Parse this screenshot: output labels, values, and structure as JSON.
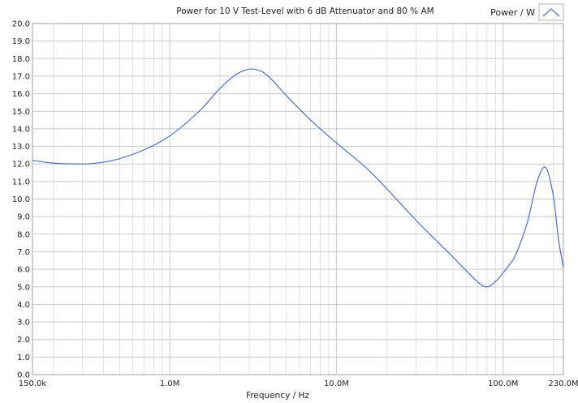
{
  "chart_data": {
    "type": "line",
    "title": "Power for 10 V Test-Level with 6 dB Attenuator and 80 % AM",
    "xlabel": "Frequency / Hz",
    "ylabel": "",
    "xscale": "log",
    "xlim": [
      150000,
      230000000
    ],
    "ylim": [
      0,
      20
    ],
    "grid": true,
    "legend_placement": "top-right",
    "y_ticks": [
      0,
      1,
      2,
      3,
      4,
      5,
      6,
      7,
      8,
      9,
      10,
      11,
      12,
      13,
      14,
      15,
      16,
      17,
      18,
      19,
      20
    ],
    "y_tick_labels": [
      "0.0",
      "1.0",
      "2.0",
      "3.0",
      "4.0",
      "5.0",
      "6.0",
      "7.0",
      "8.0",
      "9.0",
      "10.0",
      "11.0",
      "12.0",
      "13.0",
      "14.0",
      "15.0",
      "16.0",
      "17.0",
      "18.0",
      "19.0",
      "20.0"
    ],
    "x_ticks": [
      150000,
      1000000,
      10000000,
      100000000,
      230000000
    ],
    "x_tick_labels": [
      "150.0k",
      "1.0M",
      "10.0M",
      "100.0M",
      "230.0M"
    ],
    "series": [
      {
        "name": "Power / W",
        "color": "#4a6fd4",
        "x": [
          150000,
          200000,
          300000,
          400000,
          500000,
          700000,
          1000000,
          1500000,
          2000000,
          2500000,
          3000000,
          3500000,
          4000000,
          5000000,
          7000000,
          10000000,
          15000000,
          20000000,
          30000000,
          50000000,
          70000000,
          80000000,
          90000000,
          100000000,
          110000000,
          120000000,
          140000000,
          160000000,
          180000000,
          200000000,
          215000000,
          230000000
        ],
        "y": [
          12.2,
          12.05,
          12.0,
          12.1,
          12.3,
          12.8,
          13.6,
          15.0,
          16.3,
          17.1,
          17.4,
          17.3,
          16.9,
          15.9,
          14.5,
          13.2,
          11.8,
          10.6,
          8.8,
          6.7,
          5.3,
          5.0,
          5.3,
          5.8,
          6.3,
          6.9,
          8.7,
          11.0,
          11.8,
          10.2,
          7.7,
          6.1
        ]
      }
    ]
  }
}
